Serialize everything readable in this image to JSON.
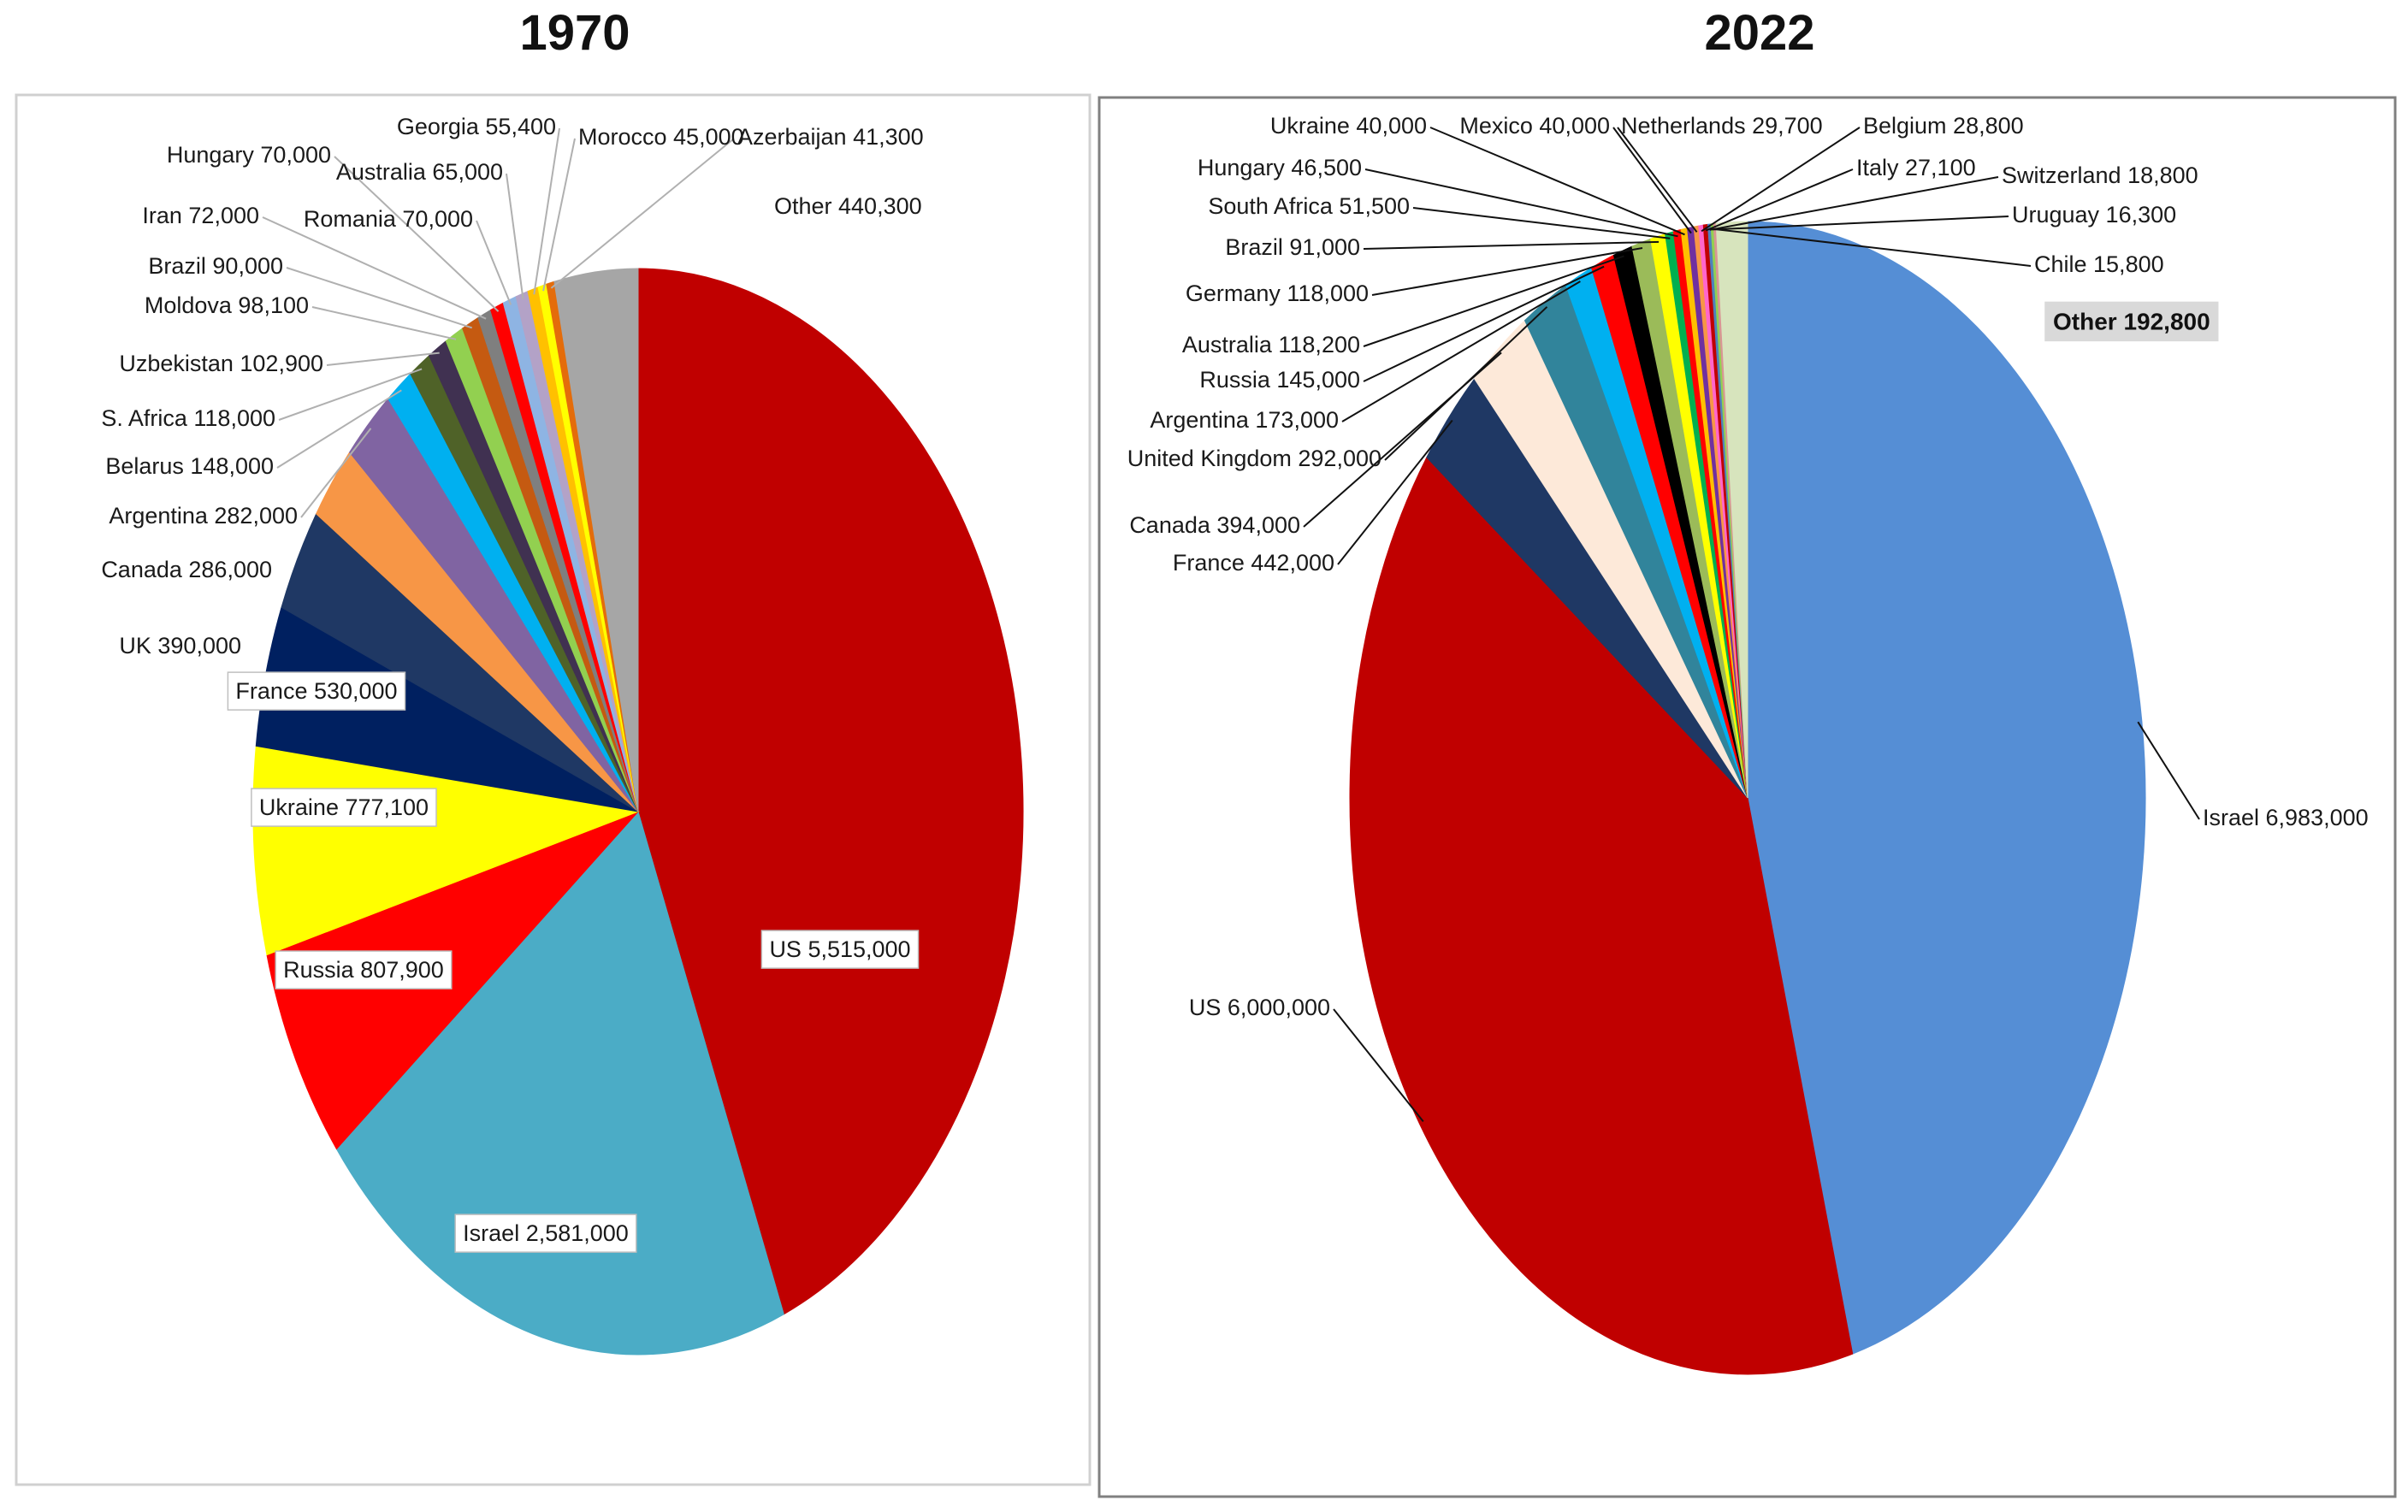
{
  "chart_data": [
    {
      "type": "pie",
      "title": "1970",
      "slices": [
        {
          "label": "US",
          "value": 5515000,
          "display": "US 5,515,000",
          "color": "#c00000"
        },
        {
          "label": "Israel",
          "value": 2581000,
          "display": "Israel 2,581,000",
          "color": "#4bacc6"
        },
        {
          "label": "Russia",
          "value": 807900,
          "display": "Russia 807,900",
          "color": "#ff0000"
        },
        {
          "label": "Ukraine",
          "value": 777100,
          "display": "Ukraine 777,100",
          "color": "#ffff00"
        },
        {
          "label": "France",
          "value": 530000,
          "display": "France 530,000",
          "color": "#002060"
        },
        {
          "label": "UK",
          "value": 390000,
          "display": "UK 390,000",
          "color": "#1f3864"
        },
        {
          "label": "Canada",
          "value": 286000,
          "display": "Canada 286,000",
          "color": "#f79646"
        },
        {
          "label": "Argentina",
          "value": 282000,
          "display": "Argentina 282,000",
          "color": "#8064a2"
        },
        {
          "label": "Belarus",
          "value": 148000,
          "display": "Belarus 148,000",
          "color": "#00b0f0"
        },
        {
          "label": "S. Africa",
          "value": 118000,
          "display": "S. Africa 118,000",
          "color": "#4f6228"
        },
        {
          "label": "Uzbekistan",
          "value": 102900,
          "display": "Uzbekistan 102,900",
          "color": "#403151"
        },
        {
          "label": "Moldova",
          "value": 98100,
          "display": "Moldova 98,100",
          "color": "#92d050"
        },
        {
          "label": "Brazil",
          "value": 90000,
          "display": "Brazil 90,000",
          "color": "#c55a11"
        },
        {
          "label": "Iran",
          "value": 72000,
          "display": "Iran 72,000",
          "color": "#7f7f7f"
        },
        {
          "label": "Hungary",
          "value": 70000,
          "display": "Hungary 70,000",
          "color": "#ff0000"
        },
        {
          "label": "Romania",
          "value": 70000,
          "display": "Romania 70,000",
          "color": "#8eb4e3"
        },
        {
          "label": "Australia",
          "value": 65000,
          "display": "Australia 65,000",
          "color": "#b3a2c7"
        },
        {
          "label": "Georgia",
          "value": 55400,
          "display": "Georgia 55,400",
          "color": "#ffc000"
        },
        {
          "label": "Morocco",
          "value": 45000,
          "display": "Morocco 45,000",
          "color": "#ffff00"
        },
        {
          "label": "Azerbaijan",
          "value": 41300,
          "display": "Azerbaijan 41,300",
          "color": "#e46c0a"
        },
        {
          "label": "Other",
          "value": 440300,
          "display": "Other 440,300",
          "color": "#a6a6a6"
        }
      ]
    },
    {
      "type": "pie",
      "title": "2022",
      "slices": [
        {
          "label": "Israel",
          "value": 6983000,
          "display": "Israel 6,983,000",
          "color": "#558ed5"
        },
        {
          "label": "US",
          "value": 6000000,
          "display": "US 6,000,000",
          "color": "#c00000"
        },
        {
          "label": "France",
          "value": 442000,
          "display": "France 442,000",
          "color": "#1f3864"
        },
        {
          "label": "Canada",
          "value": 394000,
          "display": "Canada 394,000",
          "color": "#fde9d9"
        },
        {
          "label": "United Kingdom",
          "value": 292000,
          "display": "United Kingdom 292,000",
          "color": "#31849b"
        },
        {
          "label": "Argentina",
          "value": 173000,
          "display": "Argentina 173,000",
          "color": "#00b0f0"
        },
        {
          "label": "Russia",
          "value": 145000,
          "display": "Russia 145,000",
          "color": "#ff0000"
        },
        {
          "label": "Australia",
          "value": 118200,
          "display": "Australia 118,200",
          "color": "#000000"
        },
        {
          "label": "Germany",
          "value": 118000,
          "display": "Germany 118,000",
          "color": "#9bbb59"
        },
        {
          "label": "Brazil",
          "value": 91000,
          "display": "Brazil 91,000",
          "color": "#ffff00"
        },
        {
          "label": "South Africa",
          "value": 51500,
          "display": "South Africa 51,500",
          "color": "#00b050"
        },
        {
          "label": "Hungary",
          "value": 46500,
          "display": "Hungary 46,500",
          "color": "#ff0000"
        },
        {
          "label": "Ukraine",
          "value": 40000,
          "display": "Ukraine 40,000",
          "color": "#ffc000"
        },
        {
          "label": "Mexico",
          "value": 40000,
          "display": "Mexico 40,000",
          "color": "#7030a0"
        },
        {
          "label": "Netherlands",
          "value": 29700,
          "display": "Netherlands 29,700",
          "color": "#f79646"
        },
        {
          "label": "Belgium",
          "value": 28800,
          "display": "Belgium 28,800",
          "color": "#ff66cc"
        },
        {
          "label": "Italy",
          "value": 27100,
          "display": "Italy 27,100",
          "color": "#c00000"
        },
        {
          "label": "Switzerland",
          "value": 18800,
          "display": "Switzerland 18,800",
          "color": "#4f81bd"
        },
        {
          "label": "Uruguay",
          "value": 16300,
          "display": "Uruguay 16,300",
          "color": "#92d050"
        },
        {
          "label": "Chile",
          "value": 15800,
          "display": "Chile 15,800",
          "color": "#d99694"
        },
        {
          "label": "Other",
          "value": 192800,
          "display": "Other 192,800",
          "color": "#d7e4bd"
        }
      ]
    }
  ]
}
